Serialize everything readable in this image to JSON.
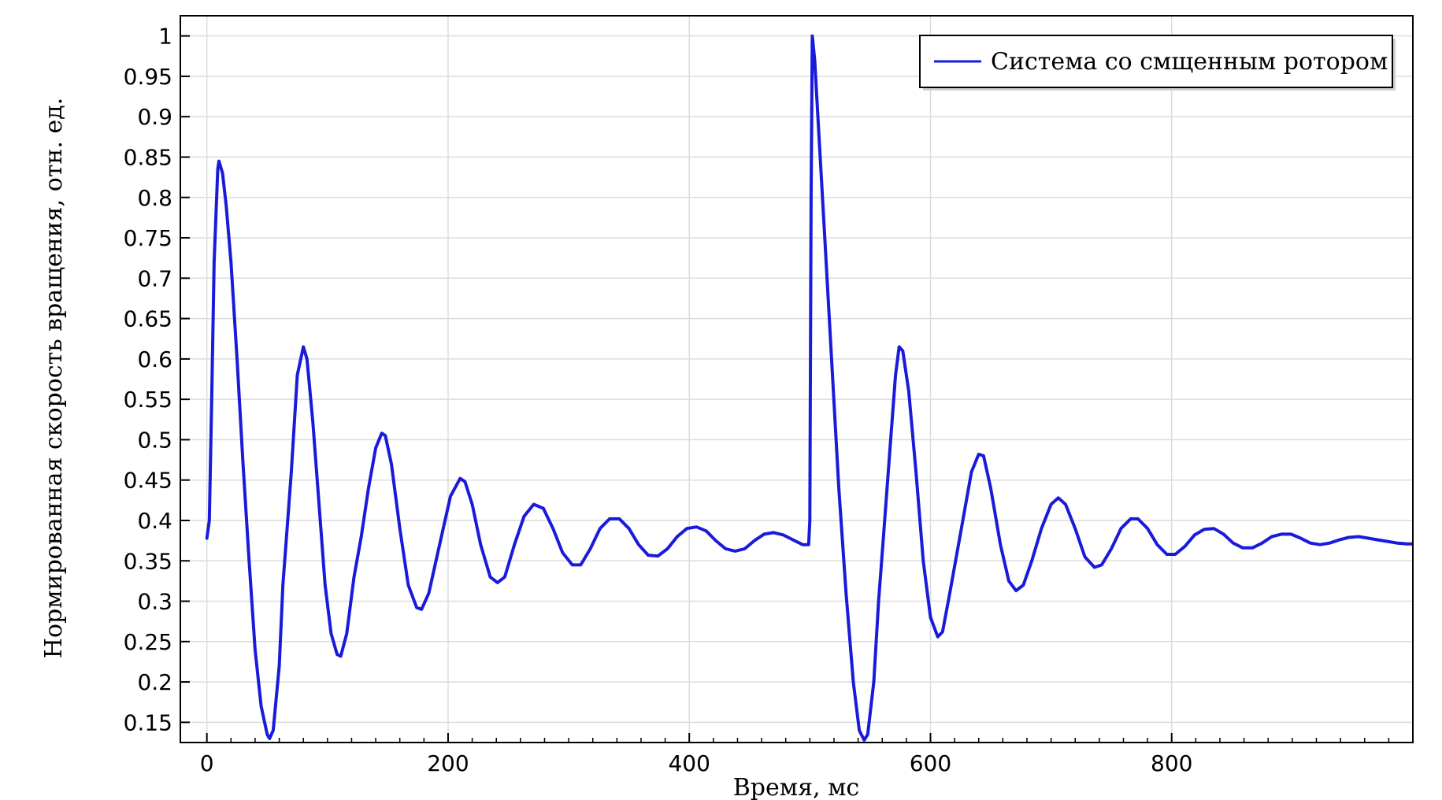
{
  "chart_data": {
    "type": "line",
    "title": "",
    "xlabel": "Время, мс",
    "ylabel": "Нормированная скорость вращения, отн. ед.",
    "xlim": [
      -22,
      1000
    ],
    "ylim": [
      0.125,
      1.025
    ],
    "xticks": [
      0,
      200,
      400,
      600,
      800
    ],
    "xtick_labels": [
      "0",
      "200",
      "400",
      "600",
      "800"
    ],
    "yticks": [
      0.15,
      0.2,
      0.25,
      0.3,
      0.35,
      0.4,
      0.45,
      0.5,
      0.55,
      0.6,
      0.65,
      0.7,
      0.75,
      0.8,
      0.85,
      0.9,
      0.95,
      1
    ],
    "ytick_labels": [
      "0.15",
      "0.2",
      "0.25",
      "0.3",
      "0.35",
      "0.4",
      "0.45",
      "0.5",
      "0.55",
      "0.6",
      "0.65",
      "0.7",
      "0.75",
      "0.8",
      "0.85",
      "0.9",
      "0.95",
      "1"
    ],
    "grid": true,
    "legend_position": "top-right",
    "series": [
      {
        "name": "Система со смщенным ротором",
        "color": "#1a1adb",
        "points": [
          [
            0,
            0.378
          ],
          [
            2,
            0.4
          ],
          [
            4,
            0.55
          ],
          [
            6,
            0.72
          ],
          [
            9,
            0.835
          ],
          [
            10,
            0.845
          ],
          [
            13,
            0.83
          ],
          [
            16,
            0.79
          ],
          [
            20,
            0.72
          ],
          [
            25,
            0.6
          ],
          [
            30,
            0.47
          ],
          [
            35,
            0.35
          ],
          [
            40,
            0.24
          ],
          [
            45,
            0.17
          ],
          [
            50,
            0.135
          ],
          [
            52,
            0.13
          ],
          [
            55,
            0.14
          ],
          [
            60,
            0.22
          ],
          [
            63,
            0.32
          ],
          [
            66,
            0.38
          ],
          [
            70,
            0.46
          ],
          [
            75,
            0.58
          ],
          [
            80,
            0.615
          ],
          [
            83,
            0.6
          ],
          [
            88,
            0.52
          ],
          [
            93,
            0.42
          ],
          [
            98,
            0.32
          ],
          [
            103,
            0.26
          ],
          [
            108,
            0.234
          ],
          [
            111,
            0.232
          ],
          [
            116,
            0.26
          ],
          [
            122,
            0.33
          ],
          [
            128,
            0.38
          ],
          [
            134,
            0.44
          ],
          [
            140,
            0.49
          ],
          [
            145,
            0.508
          ],
          [
            148,
            0.505
          ],
          [
            153,
            0.47
          ],
          [
            160,
            0.39
          ],
          [
            167,
            0.32
          ],
          [
            174,
            0.292
          ],
          [
            178,
            0.29
          ],
          [
            184,
            0.31
          ],
          [
            190,
            0.35
          ],
          [
            196,
            0.39
          ],
          [
            202,
            0.43
          ],
          [
            210,
            0.452
          ],
          [
            214,
            0.448
          ],
          [
            220,
            0.42
          ],
          [
            227,
            0.37
          ],
          [
            235,
            0.33
          ],
          [
            241,
            0.323
          ],
          [
            247,
            0.33
          ],
          [
            255,
            0.37
          ],
          [
            263,
            0.405
          ],
          [
            271,
            0.42
          ],
          [
            279,
            0.415
          ],
          [
            287,
            0.39
          ],
          [
            295,
            0.36
          ],
          [
            303,
            0.345
          ],
          [
            310,
            0.345
          ],
          [
            318,
            0.365
          ],
          [
            326,
            0.39
          ],
          [
            334,
            0.402
          ],
          [
            342,
            0.402
          ],
          [
            350,
            0.39
          ],
          [
            358,
            0.37
          ],
          [
            366,
            0.357
          ],
          [
            374,
            0.356
          ],
          [
            382,
            0.365
          ],
          [
            390,
            0.38
          ],
          [
            398,
            0.39
          ],
          [
            406,
            0.392
          ],
          [
            414,
            0.387
          ],
          [
            422,
            0.375
          ],
          [
            430,
            0.365
          ],
          [
            438,
            0.362
          ],
          [
            446,
            0.365
          ],
          [
            454,
            0.375
          ],
          [
            462,
            0.383
          ],
          [
            470,
            0.385
          ],
          [
            478,
            0.382
          ],
          [
            486,
            0.376
          ],
          [
            494,
            0.37
          ],
          [
            499,
            0.37
          ],
          [
            500,
            0.4
          ],
          [
            501,
            0.8
          ],
          [
            502,
            1.0
          ],
          [
            504,
            0.97
          ],
          [
            507,
            0.89
          ],
          [
            512,
            0.76
          ],
          [
            518,
            0.6
          ],
          [
            524,
            0.44
          ],
          [
            530,
            0.31
          ],
          [
            536,
            0.2
          ],
          [
            541,
            0.14
          ],
          [
            545,
            0.128
          ],
          [
            548,
            0.135
          ],
          [
            553,
            0.2
          ],
          [
            557,
            0.3
          ],
          [
            561,
            0.38
          ],
          [
            566,
            0.48
          ],
          [
            571,
            0.58
          ],
          [
            574,
            0.615
          ],
          [
            577,
            0.61
          ],
          [
            582,
            0.56
          ],
          [
            588,
            0.46
          ],
          [
            594,
            0.35
          ],
          [
            600,
            0.28
          ],
          [
            606,
            0.256
          ],
          [
            610,
            0.262
          ],
          [
            616,
            0.31
          ],
          [
            622,
            0.36
          ],
          [
            628,
            0.41
          ],
          [
            634,
            0.46
          ],
          [
            640,
            0.482
          ],
          [
            644,
            0.48
          ],
          [
            650,
            0.44
          ],
          [
            658,
            0.37
          ],
          [
            665,
            0.325
          ],
          [
            671,
            0.313
          ],
          [
            677,
            0.32
          ],
          [
            684,
            0.35
          ],
          [
            692,
            0.39
          ],
          [
            700,
            0.42
          ],
          [
            706,
            0.428
          ],
          [
            712,
            0.42
          ],
          [
            720,
            0.39
          ],
          [
            728,
            0.355
          ],
          [
            736,
            0.342
          ],
          [
            742,
            0.345
          ],
          [
            750,
            0.365
          ],
          [
            758,
            0.39
          ],
          [
            766,
            0.402
          ],
          [
            772,
            0.402
          ],
          [
            780,
            0.39
          ],
          [
            788,
            0.37
          ],
          [
            796,
            0.358
          ],
          [
            803,
            0.358
          ],
          [
            811,
            0.368
          ],
          [
            819,
            0.382
          ],
          [
            827,
            0.389
          ],
          [
            835,
            0.39
          ],
          [
            843,
            0.383
          ],
          [
            851,
            0.372
          ],
          [
            859,
            0.366
          ],
          [
            867,
            0.366
          ],
          [
            875,
            0.372
          ],
          [
            883,
            0.38
          ],
          [
            891,
            0.383
          ],
          [
            899,
            0.383
          ],
          [
            907,
            0.378
          ],
          [
            915,
            0.372
          ],
          [
            923,
            0.37
          ],
          [
            931,
            0.372
          ],
          [
            939,
            0.376
          ],
          [
            947,
            0.379
          ],
          [
            955,
            0.38
          ],
          [
            963,
            0.378
          ],
          [
            971,
            0.376
          ],
          [
            979,
            0.374
          ],
          [
            987,
            0.372
          ],
          [
            995,
            0.371
          ],
          [
            999,
            0.371
          ]
        ]
      }
    ]
  }
}
